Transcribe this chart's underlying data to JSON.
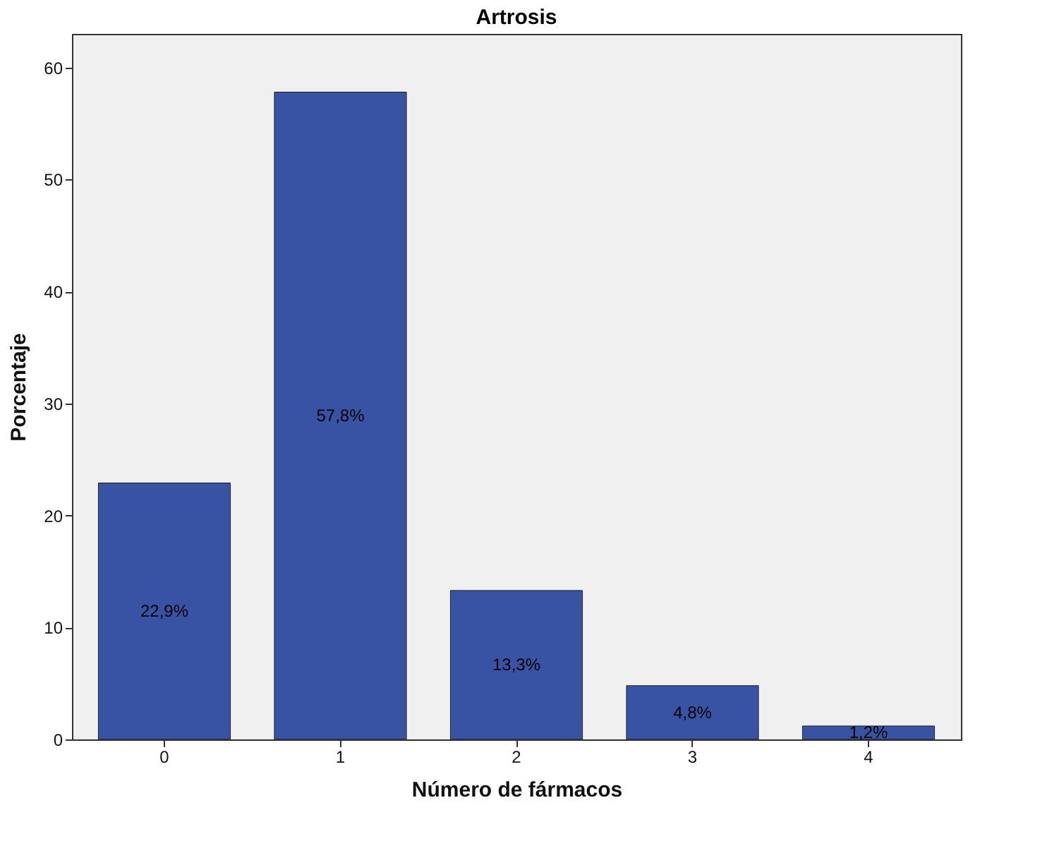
{
  "chart_data": {
    "type": "bar",
    "title": "Artrosis",
    "xlabel": "Número de fármacos",
    "ylabel": "Porcentaje",
    "categories": [
      "0",
      "1",
      "2",
      "3",
      "4"
    ],
    "values": [
      22.9,
      57.8,
      13.3,
      4.8,
      1.2
    ],
    "value_labels": [
      "22,9%",
      "57,8%",
      "13,3%",
      "4,8%",
      "1,2%"
    ],
    "color": "#3953a4",
    "ylim": [
      0,
      63
    ],
    "yticks": [
      0,
      10,
      20,
      30,
      40,
      50,
      60
    ],
    "grid": false
  }
}
